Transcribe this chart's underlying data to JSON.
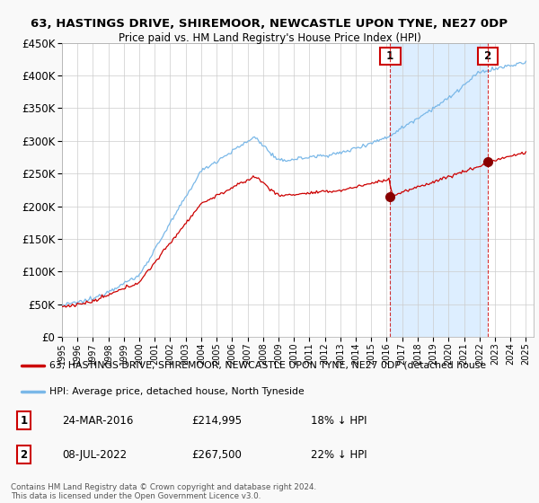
{
  "title": "63, HASTINGS DRIVE, SHIREMOOR, NEWCASTLE UPON TYNE, NE27 0DP",
  "subtitle": "Price paid vs. HM Land Registry's House Price Index (HPI)",
  "ylim": [
    0,
    450000
  ],
  "yticks": [
    0,
    50000,
    100000,
    150000,
    200000,
    250000,
    300000,
    350000,
    400000,
    450000
  ],
  "year_start": 1995,
  "year_end": 2025,
  "hpi_color": "#7ab8e8",
  "price_color": "#cc0000",
  "shade_color": "#ddeeff",
  "marker1_year": 2016.23,
  "marker1_value": 214995,
  "marker1_label": "1",
  "marker1_date": "24-MAR-2016",
  "marker1_pct": "18% ↓ HPI",
  "marker2_year": 2022.52,
  "marker2_value": 267500,
  "marker2_label": "2",
  "marker2_date": "08-JUL-2022",
  "marker2_pct": "22% ↓ HPI",
  "legend_property": "63, HASTINGS DRIVE, SHIREMOOR, NEWCASTLE UPON TYNE, NE27 0DP (detached house",
  "legend_hpi": "HPI: Average price, detached house, North Tyneside",
  "footer": "Contains HM Land Registry data © Crown copyright and database right 2024.\nThis data is licensed under the Open Government Licence v3.0.",
  "background_color": "#f9f9f9",
  "plot_bg_color": "#ffffff"
}
